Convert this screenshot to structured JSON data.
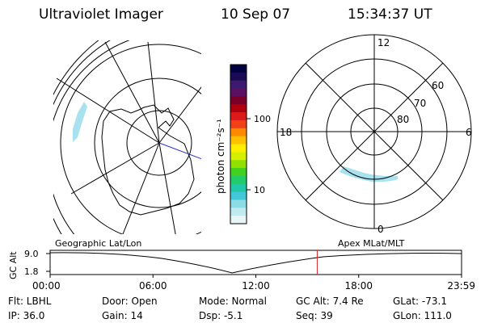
{
  "header": {
    "title": "Ultraviolet Imager",
    "date": "10 Sep 07",
    "time": "15:34:37 UT"
  },
  "colorbar": {
    "unit_label": "photon cm⁻²s⁻¹",
    "tick_labels": [
      "100",
      "10"
    ],
    "colors": [
      "#000040",
      "#1a0a55",
      "#3c1a70",
      "#5a1060",
      "#7a0028",
      "#b00010",
      "#dd1a1a",
      "#f04018",
      "#ff8a00",
      "#ffc000",
      "#ffee00",
      "#d4f000",
      "#90e000",
      "#44d020",
      "#22cc66",
      "#20c8a8",
      "#44c8d8",
      "#8cdce6",
      "#c0eaf0",
      "#e8f6f8"
    ]
  },
  "left_map": {
    "label": "Geographic Lat/Lon",
    "colors": {
      "overlay": "#000000",
      "aurora": "#a8e2ee",
      "sun_line": "#2233bb"
    }
  },
  "right_map": {
    "label": "Apex MLat/MLT",
    "mlt_labels": {
      "top": "12",
      "bottom": "0",
      "left": "18",
      "right": "6"
    },
    "lat_labels": [
      "60",
      "70",
      "80"
    ],
    "colors": {
      "aurora": "#a8e2ee"
    }
  },
  "altitude_plot": {
    "ylabel": "GC Alt",
    "y_ticks": [
      "9.0",
      "1.8"
    ],
    "x_ticks": [
      "00:00",
      "06:00",
      "12:00",
      "18:00",
      "23:59"
    ],
    "current_time_fraction": 0.6492,
    "marker_color": "#dd2222"
  },
  "info": {
    "filter": "Flt: LBHL",
    "door": "Door: Open",
    "mode": "Mode: Normal",
    "gc_alt": "GC Alt: 7.4 Re",
    "glat": "GLat: -73.1",
    "ip": "IP: 36.0",
    "gain": "Gain: 14",
    "dsp": "Dsp:    -5.1",
    "seq": "Seq: 39",
    "glon": "GLon: 111.0"
  }
}
